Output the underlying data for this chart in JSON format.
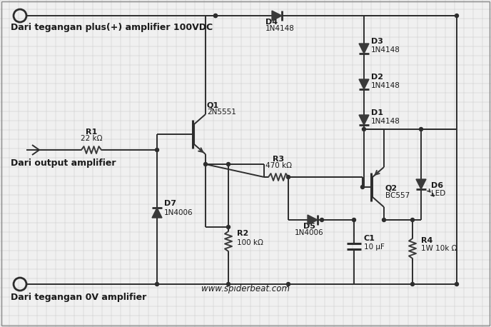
{
  "bg_color": "#f0f0f0",
  "grid_color": "#c8c8c8",
  "line_color": "#2d2d2d",
  "component_color": "#3a3a3a",
  "text_color": "#1a1a1a",
  "title_text": "www.spiderbeat.com",
  "label_plus": "Dari tegangan plus(+) amplifier 100VDC",
  "label_output": "Dari output amplifier",
  "label_zero": "Dari tegangan 0V amplifier",
  "font_size_label": 9,
  "font_size_comp": 8,
  "font_size_comp_small": 7.5,
  "fig_width": 6.88,
  "fig_height": 4.58
}
